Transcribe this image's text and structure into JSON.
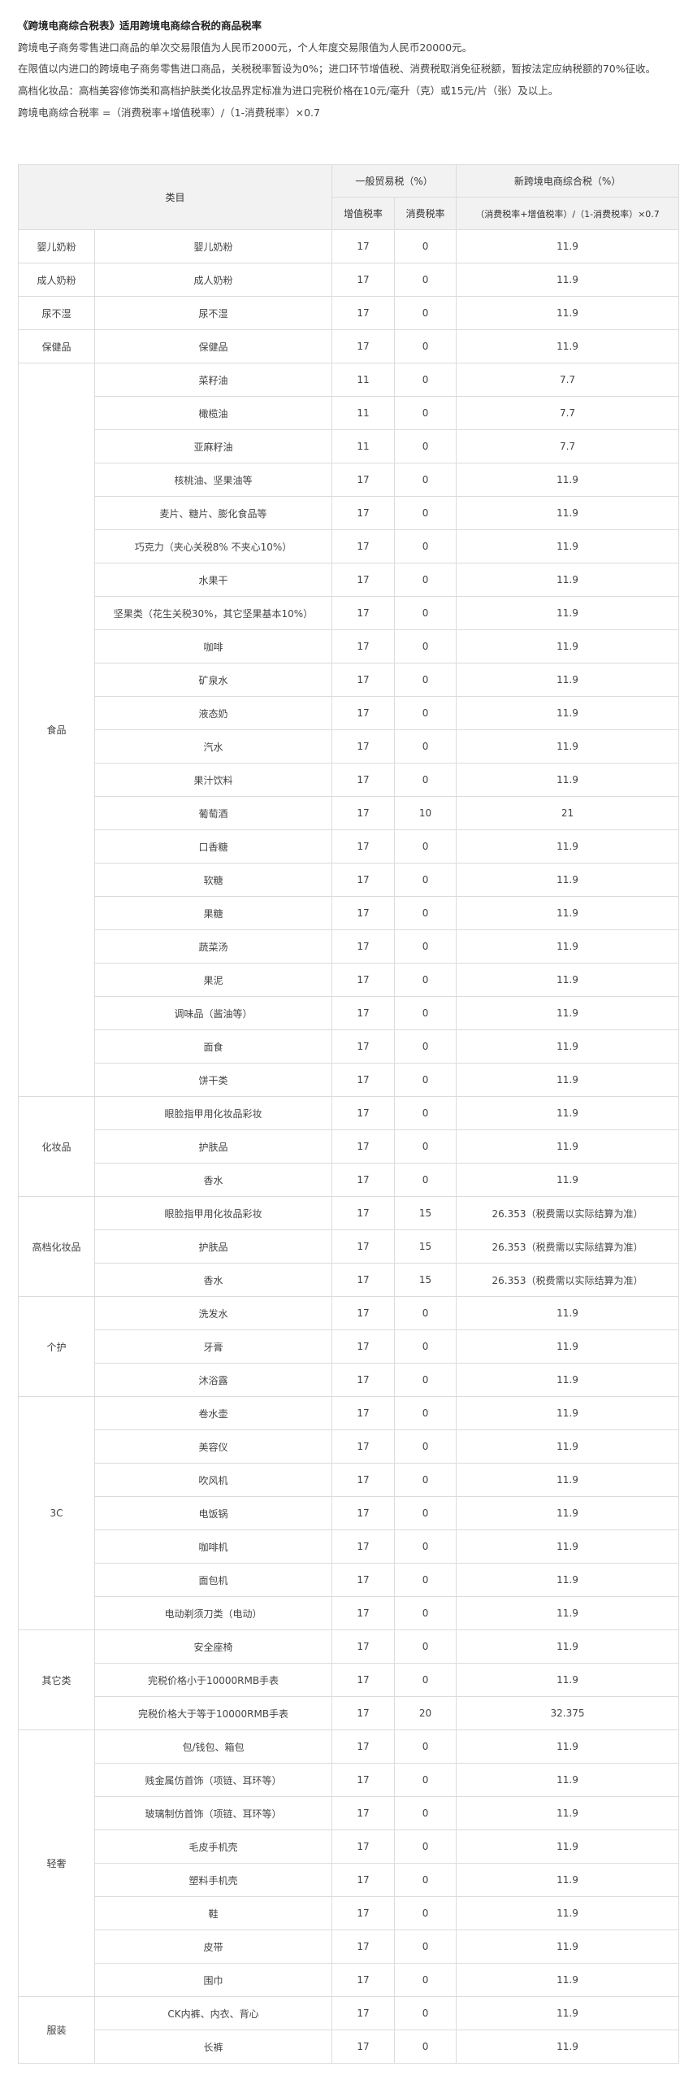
{
  "intro": {
    "title": "《跨境电商综合税表》适用跨境电商综合税的商品税率",
    "p1": "跨境电子商务零售进口商品的单次交易限值为人民币2000元，个人年度交易限值为人民币20000元。",
    "p2": "在限值以内进口的跨境电子商务零售进口商品，关税税率暂设为0%；进口环节增值税、消费税取消免征税额，暂按法定应纳税额的70%征收。",
    "p3": "高档化妆品：高档美容修饰类和高档护肤类化妆品界定标准为进口完税价格在10元/毫升（克）或15元/片（张）及以上。",
    "p4": "跨境电商综合税率 =（消费税率+增值税率）/（1-消费税率）×0.7"
  },
  "table": {
    "header": {
      "category": "类目",
      "general": "一般贸易税（%）",
      "new": "新跨境电商综合税（%）",
      "vat": "增值税率",
      "consumption": "消费税率",
      "formula": "（消费税率+增值税率）/（1-消费税率）×0.7"
    },
    "groups": [
      {
        "name": "婴儿奶粉",
        "rows": [
          [
            "婴儿奶粉",
            "17",
            "0",
            "11.9"
          ]
        ]
      },
      {
        "name": "成人奶粉",
        "rows": [
          [
            "成人奶粉",
            "17",
            "0",
            "11.9"
          ]
        ]
      },
      {
        "name": "尿不湿",
        "rows": [
          [
            "尿不湿",
            "17",
            "0",
            "11.9"
          ]
        ]
      },
      {
        "name": "保健品",
        "rows": [
          [
            "保健品",
            "17",
            "0",
            "11.9"
          ]
        ]
      },
      {
        "name": "食品",
        "rows": [
          [
            "菜籽油",
            "11",
            "0",
            "7.7"
          ],
          [
            "橄榄油",
            "11",
            "0",
            "7.7"
          ],
          [
            "亚麻籽油",
            "11",
            "0",
            "7.7"
          ],
          [
            "核桃油、坚果油等",
            "17",
            "0",
            "11.9"
          ],
          [
            "麦片、糖片、膨化食品等",
            "17",
            "0",
            "11.9"
          ],
          [
            "巧克力（夹心关税8% 不夹心10%）",
            "17",
            "0",
            "11.9"
          ],
          [
            "水果干",
            "17",
            "0",
            "11.9"
          ],
          [
            "坚果类（花生关税30%，其它坚果基本10%）",
            "17",
            "0",
            "11.9"
          ],
          [
            "咖啡",
            "17",
            "0",
            "11.9"
          ],
          [
            "矿泉水",
            "17",
            "0",
            "11.9"
          ],
          [
            "液态奶",
            "17",
            "0",
            "11.9"
          ],
          [
            "汽水",
            "17",
            "0",
            "11.9"
          ],
          [
            "果汁饮料",
            "17",
            "0",
            "11.9"
          ],
          [
            "葡萄酒",
            "17",
            "10",
            "21"
          ],
          [
            "口香糖",
            "17",
            "0",
            "11.9"
          ],
          [
            "软糖",
            "17",
            "0",
            "11.9"
          ],
          [
            "果糖",
            "17",
            "0",
            "11.9"
          ],
          [
            "蔬菜汤",
            "17",
            "0",
            "11.9"
          ],
          [
            "果泥",
            "17",
            "0",
            "11.9"
          ],
          [
            "调味品（酱油等）",
            "17",
            "0",
            "11.9"
          ],
          [
            "面食",
            "17",
            "0",
            "11.9"
          ],
          [
            "饼干类",
            "17",
            "0",
            "11.9"
          ]
        ]
      },
      {
        "name": "化妆品",
        "rows": [
          [
            "眼脸指甲用化妆品彩妆",
            "17",
            "0",
            "11.9"
          ],
          [
            "护肤品",
            "17",
            "0",
            "11.9"
          ],
          [
            "香水",
            "17",
            "0",
            "11.9"
          ]
        ]
      },
      {
        "name": "高档化妆品",
        "rows": [
          [
            "眼脸指甲用化妆品彩妆",
            "17",
            "15",
            "26.353（税费需以实际结算为准）"
          ],
          [
            "护肤品",
            "17",
            "15",
            "26.353（税费需以实际结算为准）"
          ],
          [
            "香水",
            "17",
            "15",
            "26.353（税费需以实际结算为准）"
          ]
        ]
      },
      {
        "name": "个护",
        "rows": [
          [
            "洗发水",
            "17",
            "0",
            "11.9"
          ],
          [
            "牙膏",
            "17",
            "0",
            "11.9"
          ],
          [
            "沐浴露",
            "17",
            "0",
            "11.9"
          ]
        ]
      },
      {
        "name": "3C",
        "rows": [
          [
            "卷水壶",
            "17",
            "0",
            "11.9"
          ],
          [
            "美容仪",
            "17",
            "0",
            "11.9"
          ],
          [
            "吹风机",
            "17",
            "0",
            "11.9"
          ],
          [
            "电饭锅",
            "17",
            "0",
            "11.9"
          ],
          [
            "咖啡机",
            "17",
            "0",
            "11.9"
          ],
          [
            "面包机",
            "17",
            "0",
            "11.9"
          ],
          [
            "电动剃须刀类（电动）",
            "17",
            "0",
            "11.9"
          ]
        ]
      },
      {
        "name": "其它类",
        "rows": [
          [
            "安全座椅",
            "17",
            "0",
            "11.9"
          ],
          [
            "完税价格小于10000RMB手表",
            "17",
            "0",
            "11.9"
          ],
          [
            "完税价格大于等于10000RMB手表",
            "17",
            "20",
            "32.375"
          ]
        ]
      },
      {
        "name": "轻奢",
        "rows": [
          [
            "包/钱包、箱包",
            "17",
            "0",
            "11.9"
          ],
          [
            "贱金属仿首饰（项链、耳环等）",
            "17",
            "0",
            "11.9"
          ],
          [
            "玻璃制仿首饰（项链、耳环等）",
            "17",
            "0",
            "11.9"
          ],
          [
            "毛皮手机壳",
            "17",
            "0",
            "11.9"
          ],
          [
            "塑料手机壳",
            "17",
            "0",
            "11.9"
          ],
          [
            "鞋",
            "17",
            "0",
            "11.9"
          ],
          [
            "皮带",
            "17",
            "0",
            "11.9"
          ],
          [
            "围巾",
            "17",
            "0",
            "11.9"
          ]
        ]
      },
      {
        "name": "服装",
        "rows": [
          [
            "CK内裤、内衣、背心",
            "17",
            "0",
            "11.9"
          ],
          [
            "长裤",
            "17",
            "0",
            "11.9"
          ]
        ]
      }
    ]
  }
}
